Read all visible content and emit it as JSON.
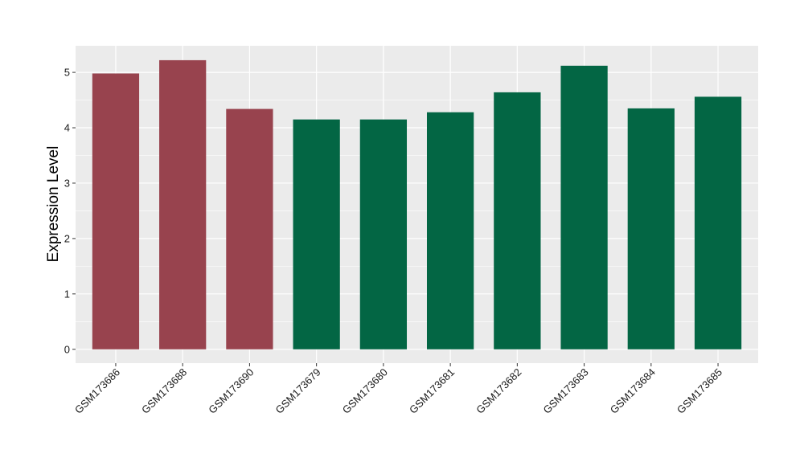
{
  "chart_data": {
    "type": "bar",
    "title": "",
    "xlabel": "",
    "ylabel": "Expression Level",
    "ylim": [
      -0.25,
      5.48
    ],
    "yticks": [
      0,
      1,
      2,
      3,
      4,
      5
    ],
    "grid": true,
    "legend": "none",
    "categories": [
      "GSM173686",
      "GSM173688",
      "GSM173690",
      "GSM173679",
      "GSM173680",
      "GSM173681",
      "GSM173682",
      "GSM173683",
      "GSM173684",
      "GSM173685"
    ],
    "values": [
      4.98,
      5.22,
      4.34,
      4.15,
      4.15,
      4.28,
      4.64,
      5.12,
      4.35,
      4.56
    ],
    "group_index": [
      0,
      0,
      0,
      1,
      1,
      1,
      1,
      1,
      1,
      1
    ],
    "group_colors": [
      "#98434e",
      "#036644"
    ],
    "panel_color": "#ebebeb",
    "grid_color": "#ffffff"
  }
}
